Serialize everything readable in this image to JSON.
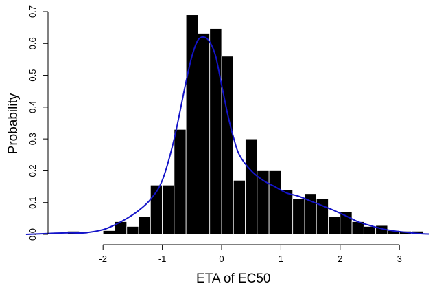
{
  "chart_data": {
    "type": "bar",
    "title": "",
    "xlabel": "ETA of EC50",
    "ylabel": "Probability",
    "xlim": [
      -3.2,
      3.5
    ],
    "ylim": [
      0,
      0.7
    ],
    "xticks": [
      -2,
      -1,
      0,
      1,
      2,
      3
    ],
    "yticks": [
      0.0,
      0.1,
      0.2,
      0.3,
      0.4,
      0.5,
      0.6,
      0.7
    ],
    "ytick_labels": [
      "0.0",
      "0.1",
      "0.2",
      "0.3",
      "0.4",
      "0.5",
      "0.6",
      "0.7"
    ],
    "bin_width": 0.2,
    "histogram": {
      "bin_left": [
        -2.6,
        -2.0,
        -1.8,
        -1.6,
        -1.4,
        -1.2,
        -1.0,
        -0.8,
        -0.6,
        -0.4,
        -0.2,
        0.0,
        0.2,
        0.4,
        0.6,
        0.8,
        1.0,
        1.2,
        1.4,
        1.6,
        1.8,
        2.0,
        2.2,
        2.4,
        2.6,
        2.8,
        3.0,
        3.2
      ],
      "values": [
        0.01,
        0.012,
        0.04,
        0.025,
        0.055,
        0.155,
        0.155,
        0.33,
        0.69,
        0.632,
        0.647,
        0.56,
        0.17,
        0.3,
        0.2,
        0.2,
        0.14,
        0.112,
        0.128,
        0.112,
        0.055,
        0.07,
        0.04,
        0.025,
        0.028,
        0.012,
        0.01,
        0.01
      ]
    },
    "density": {
      "name": "",
      "color": "#1414c8",
      "x": [
        -3.3,
        -2.9,
        -2.6,
        -2.3,
        -2.0,
        -1.8,
        -1.6,
        -1.4,
        -1.2,
        -1.0,
        -0.8,
        -0.6,
        -0.5,
        -0.4,
        -0.3,
        -0.2,
        -0.1,
        0.0,
        0.1,
        0.2,
        0.3,
        0.5,
        0.7,
        0.9,
        1.1,
        1.3,
        1.5,
        1.7,
        1.9,
        2.1,
        2.3,
        2.5,
        2.7,
        2.9,
        3.1,
        3.3,
        3.5
      ],
      "y": [
        0.0,
        0.003,
        0.005,
        0.005,
        0.015,
        0.03,
        0.05,
        0.075,
        0.11,
        0.17,
        0.3,
        0.48,
        0.56,
        0.61,
        0.62,
        0.605,
        0.56,
        0.47,
        0.38,
        0.305,
        0.25,
        0.2,
        0.17,
        0.15,
        0.13,
        0.12,
        0.105,
        0.09,
        0.075,
        0.058,
        0.04,
        0.028,
        0.018,
        0.011,
        0.007,
        0.003,
        0.001
      ]
    }
  }
}
